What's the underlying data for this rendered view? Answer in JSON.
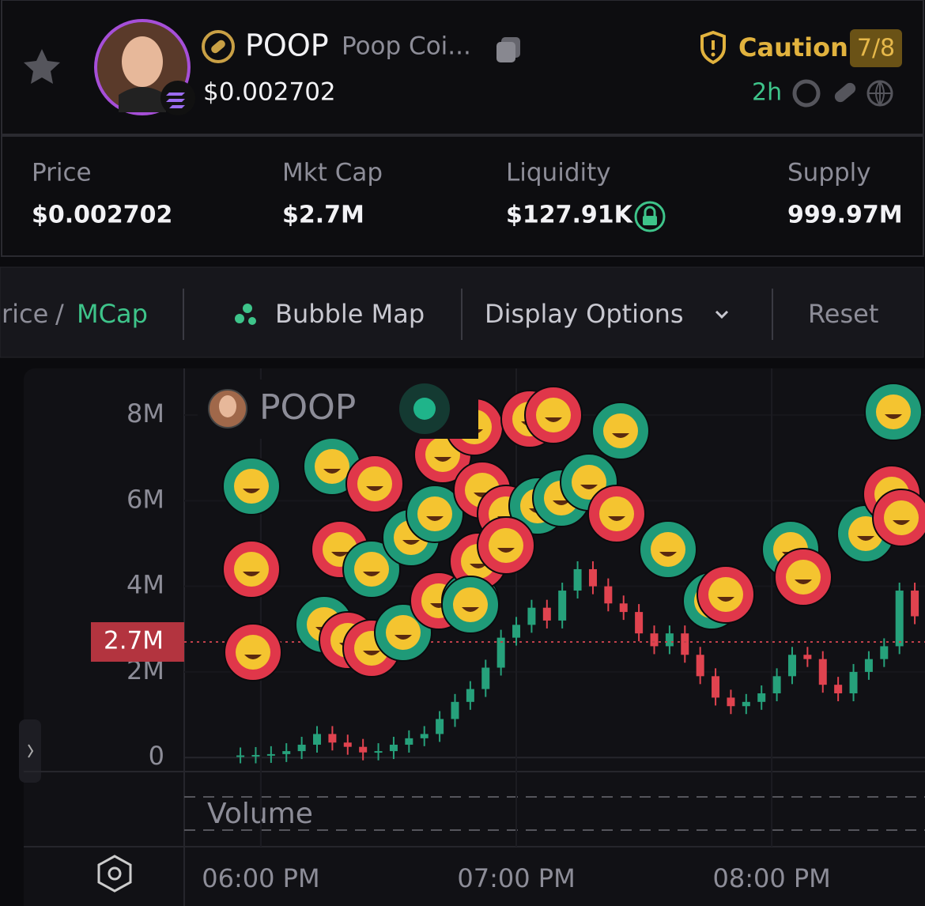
{
  "header": {
    "symbol": "POOP",
    "name": "Poop Coi...",
    "price": "$0.002702",
    "risk": "Caution",
    "risk_score": "7/8",
    "age": "2h"
  },
  "stats": [
    {
      "label": "Price",
      "value": "$0.002702"
    },
    {
      "label": "Mkt Cap",
      "value": "$2.7M"
    },
    {
      "label": "Liquidity",
      "value": "$127.91K"
    },
    {
      "label": "Supply",
      "value": "999.97M"
    }
  ],
  "toolbar": {
    "price_tab": "rice",
    "separator": "/",
    "mcap_tab": "MCap",
    "bubble_map": "Bubble Map",
    "display_options": "Display Options",
    "reset": "Reset"
  },
  "chart": {
    "type": "candlestick",
    "legend": "POOP",
    "volume_label": "Volume",
    "x": [
      17.92,
      17.98,
      18.04,
      18.1,
      18.16,
      18.22,
      18.28,
      18.34,
      18.4,
      18.46,
      18.52,
      18.58,
      18.64,
      18.7,
      18.76,
      18.82,
      18.88,
      18.94,
      19.0,
      19.06,
      19.12,
      19.18,
      19.24,
      19.3,
      19.36,
      19.42,
      19.48,
      19.54,
      19.6,
      19.66,
      19.72,
      19.78,
      19.84,
      19.9,
      19.96,
      20.02,
      20.08,
      20.14,
      20.2,
      20.26,
      20.32,
      20.38,
      20.44,
      20.5,
      20.56
    ],
    "values": [
      0.05,
      0.06,
      0.08,
      0.15,
      0.3,
      0.55,
      0.35,
      0.25,
      0.12,
      0.15,
      0.3,
      0.45,
      0.55,
      0.9,
      1.3,
      1.6,
      2.1,
      2.8,
      3.1,
      3.5,
      3.2,
      3.9,
      4.4,
      4.0,
      3.6,
      3.4,
      2.9,
      2.6,
      2.9,
      2.4,
      1.9,
      1.4,
      1.2,
      1.3,
      1.5,
      1.9,
      2.4,
      2.3,
      1.7,
      1.5,
      2.0,
      2.3,
      2.6,
      3.9,
      3.3
    ],
    "xlim": [
      17.7,
      20.6
    ],
    "xticks": [
      {
        "value": 18,
        "label": "06:00 PM"
      },
      {
        "value": 19,
        "label": "07:00 PM"
      },
      {
        "value": 20,
        "label": "08:00 PM"
      }
    ],
    "ylim": [
      -0.31,
      9.09
    ],
    "yticks": [
      0,
      {
        "value": 2,
        "label": "2M"
      },
      {
        "value": 4,
        "label": "4M"
      },
      {
        "value": 6,
        "label": "6M"
      },
      {
        "value": 8,
        "label": "8M"
      }
    ],
    "current": {
      "value": 2.7,
      "label": "2.7M"
    },
    "colors": {
      "up": "#26a17b",
      "down": "#e0434f"
    }
  }
}
